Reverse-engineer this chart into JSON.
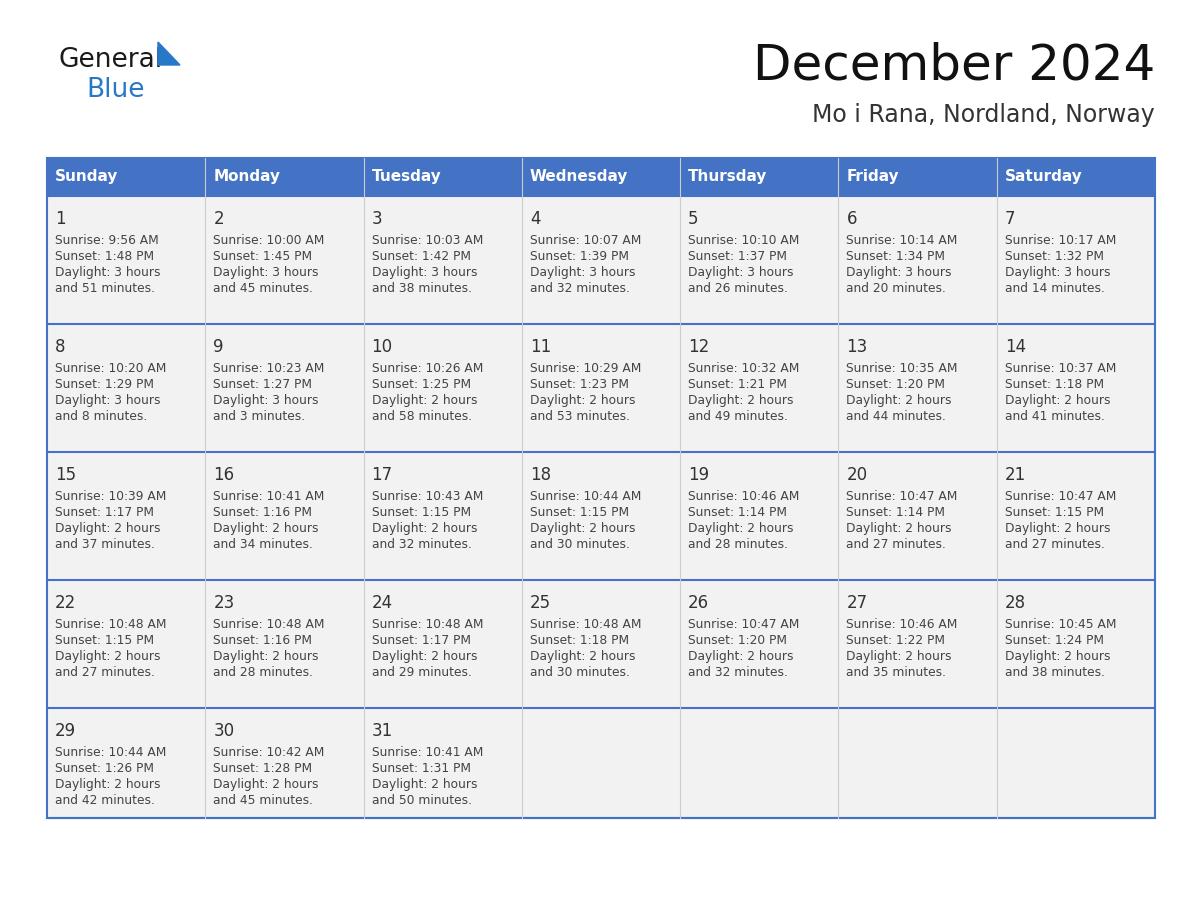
{
  "title": "December 2024",
  "subtitle": "Mo i Rana, Nordland, Norway",
  "header_color": "#4472C4",
  "header_text_color": "#FFFFFF",
  "cell_bg_color": "#F2F2F2",
  "cell_bg_empty": "#FFFFFF",
  "border_color": "#4472C4",
  "row_divider_color": "#4472C4",
  "day_number_color": "#333333",
  "text_color": "#444444",
  "days_of_week": [
    "Sunday",
    "Monday",
    "Tuesday",
    "Wednesday",
    "Thursday",
    "Friday",
    "Saturday"
  ],
  "weeks": [
    [
      {
        "day": 1,
        "sunrise": "9:56 AM",
        "sunset": "1:48 PM",
        "daylight_h": "3 hours",
        "daylight_m": "51 minutes."
      },
      {
        "day": 2,
        "sunrise": "10:00 AM",
        "sunset": "1:45 PM",
        "daylight_h": "3 hours",
        "daylight_m": "45 minutes."
      },
      {
        "day": 3,
        "sunrise": "10:03 AM",
        "sunset": "1:42 PM",
        "daylight_h": "3 hours",
        "daylight_m": "38 minutes."
      },
      {
        "day": 4,
        "sunrise": "10:07 AM",
        "sunset": "1:39 PM",
        "daylight_h": "3 hours",
        "daylight_m": "32 minutes."
      },
      {
        "day": 5,
        "sunrise": "10:10 AM",
        "sunset": "1:37 PM",
        "daylight_h": "3 hours",
        "daylight_m": "26 minutes."
      },
      {
        "day": 6,
        "sunrise": "10:14 AM",
        "sunset": "1:34 PM",
        "daylight_h": "3 hours",
        "daylight_m": "20 minutes."
      },
      {
        "day": 7,
        "sunrise": "10:17 AM",
        "sunset": "1:32 PM",
        "daylight_h": "3 hours",
        "daylight_m": "14 minutes."
      }
    ],
    [
      {
        "day": 8,
        "sunrise": "10:20 AM",
        "sunset": "1:29 PM",
        "daylight_h": "3 hours",
        "daylight_m": "8 minutes."
      },
      {
        "day": 9,
        "sunrise": "10:23 AM",
        "sunset": "1:27 PM",
        "daylight_h": "3 hours",
        "daylight_m": "3 minutes."
      },
      {
        "day": 10,
        "sunrise": "10:26 AM",
        "sunset": "1:25 PM",
        "daylight_h": "2 hours",
        "daylight_m": "58 minutes."
      },
      {
        "day": 11,
        "sunrise": "10:29 AM",
        "sunset": "1:23 PM",
        "daylight_h": "2 hours",
        "daylight_m": "53 minutes."
      },
      {
        "day": 12,
        "sunrise": "10:32 AM",
        "sunset": "1:21 PM",
        "daylight_h": "2 hours",
        "daylight_m": "49 minutes."
      },
      {
        "day": 13,
        "sunrise": "10:35 AM",
        "sunset": "1:20 PM",
        "daylight_h": "2 hours",
        "daylight_m": "44 minutes."
      },
      {
        "day": 14,
        "sunrise": "10:37 AM",
        "sunset": "1:18 PM",
        "daylight_h": "2 hours",
        "daylight_m": "41 minutes."
      }
    ],
    [
      {
        "day": 15,
        "sunrise": "10:39 AM",
        "sunset": "1:17 PM",
        "daylight_h": "2 hours",
        "daylight_m": "37 minutes."
      },
      {
        "day": 16,
        "sunrise": "10:41 AM",
        "sunset": "1:16 PM",
        "daylight_h": "2 hours",
        "daylight_m": "34 minutes."
      },
      {
        "day": 17,
        "sunrise": "10:43 AM",
        "sunset": "1:15 PM",
        "daylight_h": "2 hours",
        "daylight_m": "32 minutes."
      },
      {
        "day": 18,
        "sunrise": "10:44 AM",
        "sunset": "1:15 PM",
        "daylight_h": "2 hours",
        "daylight_m": "30 minutes."
      },
      {
        "day": 19,
        "sunrise": "10:46 AM",
        "sunset": "1:14 PM",
        "daylight_h": "2 hours",
        "daylight_m": "28 minutes."
      },
      {
        "day": 20,
        "sunrise": "10:47 AM",
        "sunset": "1:14 PM",
        "daylight_h": "2 hours",
        "daylight_m": "27 minutes."
      },
      {
        "day": 21,
        "sunrise": "10:47 AM",
        "sunset": "1:15 PM",
        "daylight_h": "2 hours",
        "daylight_m": "27 minutes."
      }
    ],
    [
      {
        "day": 22,
        "sunrise": "10:48 AM",
        "sunset": "1:15 PM",
        "daylight_h": "2 hours",
        "daylight_m": "27 minutes."
      },
      {
        "day": 23,
        "sunrise": "10:48 AM",
        "sunset": "1:16 PM",
        "daylight_h": "2 hours",
        "daylight_m": "28 minutes."
      },
      {
        "day": 24,
        "sunrise": "10:48 AM",
        "sunset": "1:17 PM",
        "daylight_h": "2 hours",
        "daylight_m": "29 minutes."
      },
      {
        "day": 25,
        "sunrise": "10:48 AM",
        "sunset": "1:18 PM",
        "daylight_h": "2 hours",
        "daylight_m": "30 minutes."
      },
      {
        "day": 26,
        "sunrise": "10:47 AM",
        "sunset": "1:20 PM",
        "daylight_h": "2 hours",
        "daylight_m": "32 minutes."
      },
      {
        "day": 27,
        "sunrise": "10:46 AM",
        "sunset": "1:22 PM",
        "daylight_h": "2 hours",
        "daylight_m": "35 minutes."
      },
      {
        "day": 28,
        "sunrise": "10:45 AM",
        "sunset": "1:24 PM",
        "daylight_h": "2 hours",
        "daylight_m": "38 minutes."
      }
    ],
    [
      {
        "day": 29,
        "sunrise": "10:44 AM",
        "sunset": "1:26 PM",
        "daylight_h": "2 hours",
        "daylight_m": "42 minutes."
      },
      {
        "day": 30,
        "sunrise": "10:42 AM",
        "sunset": "1:28 PM",
        "daylight_h": "2 hours",
        "daylight_m": "45 minutes."
      },
      {
        "day": 31,
        "sunrise": "10:41 AM",
        "sunset": "1:31 PM",
        "daylight_h": "2 hours",
        "daylight_m": "50 minutes."
      },
      null,
      null,
      null,
      null
    ]
  ],
  "logo_text1": "General",
  "logo_text2": "Blue",
  "logo_color1": "#1a1a1a",
  "logo_color2": "#2878C8",
  "logo_triangle_color": "#2878C8"
}
